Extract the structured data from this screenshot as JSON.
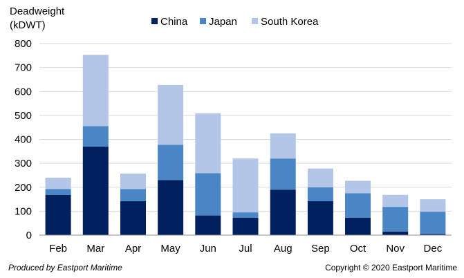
{
  "chart_data": {
    "type": "bar",
    "stacked": true,
    "ylabel_line1": "Deadweight",
    "ylabel_line2": "(kDWT)",
    "ylim": [
      0,
      800
    ],
    "yticks": [
      0,
      100,
      200,
      300,
      400,
      500,
      600,
      700,
      800
    ],
    "grid": true,
    "legend_position": "top",
    "categories": [
      "Feb",
      "Mar",
      "Apr",
      "May",
      "Jun",
      "Jul",
      "Aug",
      "Sep",
      "Oct",
      "Nov",
      "Dec"
    ],
    "series": [
      {
        "name": "China",
        "color": "#002060",
        "values": [
          168,
          370,
          142,
          230,
          82,
          73,
          190,
          142,
          73,
          15,
          5
        ]
      },
      {
        "name": "Japan",
        "color": "#4a86c5",
        "values": [
          25,
          85,
          50,
          147,
          177,
          22,
          130,
          58,
          102,
          103,
          93
        ]
      },
      {
        "name": "South Korea",
        "color": "#b4c6e7",
        "values": [
          47,
          298,
          65,
          250,
          250,
          225,
          105,
          78,
          52,
          50,
          52
        ]
      }
    ]
  },
  "footer": {
    "left": "Produced by  Eastport Maritime",
    "right": "Copyright © 2020 Eastport Maritime"
  }
}
